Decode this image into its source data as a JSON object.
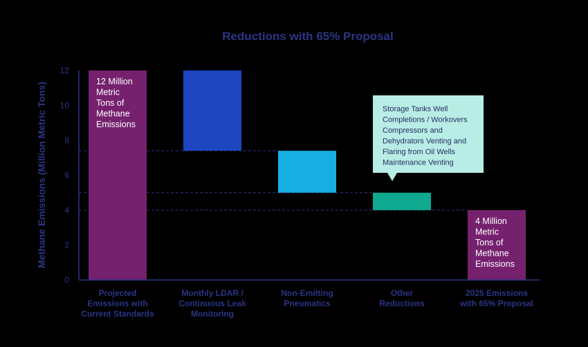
{
  "chart_data": {
    "type": "waterfall",
    "title": "Reductions with 65% Proposal",
    "ylabel": "Methane Emissions (Million Metric Tons)",
    "xlabel": "",
    "ylim": [
      0,
      12
    ],
    "yticks": [
      0,
      2,
      4,
      6,
      8,
      10,
      12
    ],
    "categories": [
      [
        "Projected",
        "Emissions with",
        "Current Standards"
      ],
      [
        "Monthly LDAR /",
        "Continuous Leak",
        "Monitoring"
      ],
      [
        "Non-Emitting",
        "Pneumatics"
      ],
      [
        "Other",
        "Reductions"
      ],
      [
        "2025 Emissions",
        "with 65% Proposal"
      ]
    ],
    "bars": [
      {
        "start": 0,
        "end": 12,
        "color": "#75216e",
        "label": [
          "12 Million",
          "Metric",
          "Tons of",
          "Methane",
          "Emissions"
        ]
      },
      {
        "start": 7.4,
        "end": 12,
        "color": "#1d46c0",
        "label": []
      },
      {
        "start": 5.0,
        "end": 7.4,
        "color": "#16aee3",
        "label": []
      },
      {
        "start": 4.0,
        "end": 5.0,
        "color": "#0fa98f",
        "label": []
      },
      {
        "start": 0,
        "end": 4.0,
        "color": "#75216e",
        "label": [
          "4 Million",
          "Metric",
          "Tons of",
          "Methane",
          "Emissions"
        ]
      }
    ],
    "connectors": [
      7.4,
      5.0,
      4.0
    ],
    "callout": {
      "bar_index": 3,
      "background": "#b8ede5",
      "lines": [
        "Storage Tanks Well",
        "Completions / Workovers",
        "Compressors and",
        "Dehydrators Venting and",
        "Flaring from Oil Wells",
        "Maintenance Venting"
      ]
    },
    "colors": {
      "axis": "#2b3585",
      "text": "#2b3585",
      "background": "#000000"
    }
  }
}
